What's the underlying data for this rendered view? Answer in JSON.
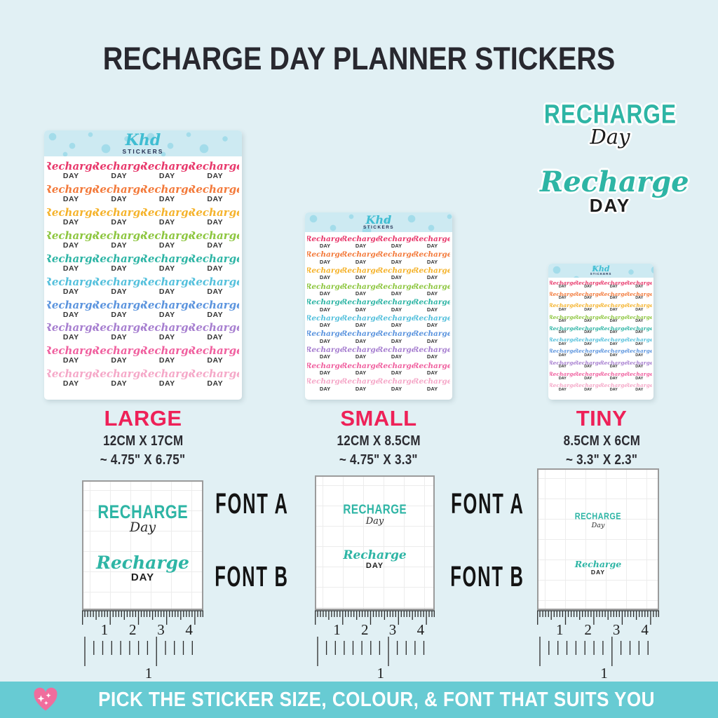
{
  "title": "RECHARGE DAY PLANNER STICKERS",
  "brand": {
    "script": "Khd",
    "caps": "STICKERS"
  },
  "sticker": {
    "line1": "Recharge",
    "line2": "DAY"
  },
  "sticker_colors": [
    "#e8386b",
    "#f37a3b",
    "#f5b32c",
    "#8dc63f",
    "#2eb5a5",
    "#54c0dc",
    "#5b94de",
    "#a77fd0",
    "#f0609f",
    "#f5a8c8"
  ],
  "theme": {
    "teal": "#2eb5a5",
    "accent_pink": "#ee2158",
    "banner_bg": "#67cbd3",
    "banner_text": "#ffffff",
    "title_color": "#28282f",
    "heart_pink": "#f06d9d"
  },
  "sheets": [
    {
      "label": "LARGE",
      "dim_cm": "12CM X 17CM",
      "dim_in": "~ 4.75\" X 6.75\""
    },
    {
      "label": "SMALL",
      "dim_cm": "12CM X 8.5CM",
      "dim_in": "~ 4.75\" X 3.3\""
    },
    {
      "label": "TINY",
      "dim_cm": "8.5CM X 6CM",
      "dim_in": "~ 3.3\" X 2.3\""
    }
  ],
  "fonts": {
    "label_a": "FONT A",
    "label_b": "FONT B",
    "a": {
      "line1": "RECHARGE",
      "line2": "Day"
    },
    "b": {
      "line1": "Recharge",
      "line2": "DAY"
    }
  },
  "ruler": {
    "cm_labels": [
      "1",
      "2",
      "3",
      "4"
    ],
    "inch_label": "1"
  },
  "banner": {
    "text": "PICK THE STICKER SIZE, COLOUR, & FONT THAT SUITS YOU"
  }
}
